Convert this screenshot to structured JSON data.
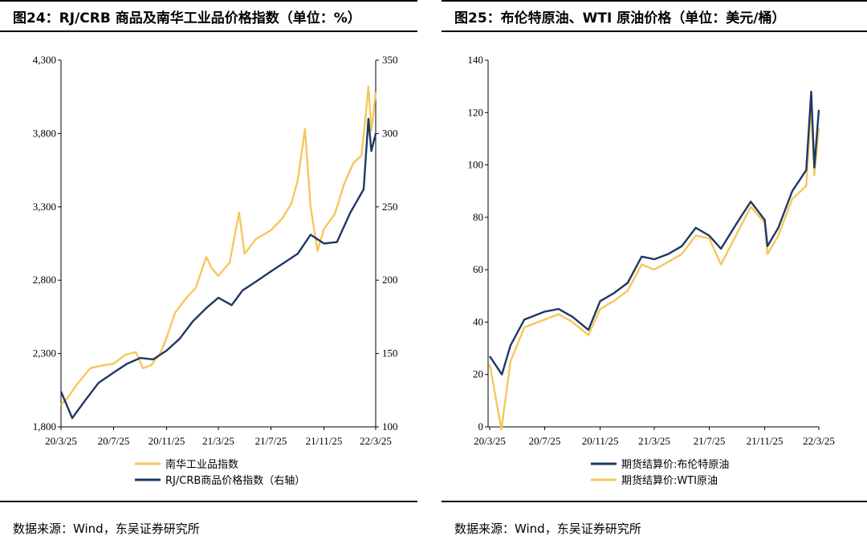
{
  "left": {
    "title": "图24：RJ/CRB 商品及南华工业品价格指数（单位：%）",
    "source": "数据来源：Wind，东吴证券研究所",
    "chart_data": {
      "type": "line",
      "x_ticks": [
        "20/3/25",
        "20/7/25",
        "20/11/25",
        "21/3/25",
        "21/7/25",
        "21/11/25",
        "22/3/25"
      ],
      "y_left": {
        "ticks": [
          "1,800",
          "2,300",
          "2,800",
          "3,300",
          "3,800",
          "4,300"
        ],
        "range": [
          1800,
          4300
        ]
      },
      "y_right": {
        "ticks": [
          "100",
          "150",
          "200",
          "250",
          "300",
          "350"
        ],
        "range": [
          100,
          350
        ]
      },
      "series": [
        {
          "name": "南华工业品指数",
          "axis": "left",
          "color": "#F5C75B",
          "points": [
            [
              "20/3/25",
              1950
            ],
            [
              "20/4/10",
              2000
            ],
            [
              "20/5/1",
              2090
            ],
            [
              "20/6/1",
              2200
            ],
            [
              "20/7/1",
              2220
            ],
            [
              "20/7/25",
              2230
            ],
            [
              "20/8/20",
              2290
            ],
            [
              "20/9/15",
              2310
            ],
            [
              "20/10/1",
              2200
            ],
            [
              "20/10/20",
              2220
            ],
            [
              "20/11/10",
              2300
            ],
            [
              "20/11/25",
              2410
            ],
            [
              "20/12/15",
              2580
            ],
            [
              "21/1/10",
              2680
            ],
            [
              "21/2/1",
              2750
            ],
            [
              "21/2/25",
              2960
            ],
            [
              "21/3/10",
              2880
            ],
            [
              "21/3/25",
              2830
            ],
            [
              "21/4/20",
              2920
            ],
            [
              "21/5/12",
              3260
            ],
            [
              "21/5/25",
              2980
            ],
            [
              "21/6/20",
              3080
            ],
            [
              "21/7/25",
              3140
            ],
            [
              "21/8/20",
              3220
            ],
            [
              "21/9/10",
              3320
            ],
            [
              "21/9/25",
              3480
            ],
            [
              "21/10/12",
              3830
            ],
            [
              "21/10/25",
              3300
            ],
            [
              "21/11/10",
              3000
            ],
            [
              "21/11/25",
              3150
            ],
            [
              "21/12/20",
              3250
            ],
            [
              "22/1/10",
              3450
            ],
            [
              "22/2/1",
              3600
            ],
            [
              "22/2/20",
              3650
            ],
            [
              "22/3/1",
              3900
            ],
            [
              "22/3/8",
              4120
            ],
            [
              "22/3/15",
              3820
            ],
            [
              "22/3/25",
              4080
            ]
          ]
        },
        {
          "name": "RJ/CRB商品价格指数（右轴）",
          "axis": "right",
          "color": "#1F3864",
          "points": [
            [
              "20/3/25",
              124
            ],
            [
              "20/4/20",
              106
            ],
            [
              "20/5/20",
              118
            ],
            [
              "20/6/20",
              130
            ],
            [
              "20/7/25",
              137
            ],
            [
              "20/8/25",
              143
            ],
            [
              "20/9/25",
              147
            ],
            [
              "20/10/25",
              146
            ],
            [
              "20/11/25",
              152
            ],
            [
              "20/12/25",
              160
            ],
            [
              "21/1/25",
              172
            ],
            [
              "21/2/25",
              181
            ],
            [
              "21/3/25",
              188
            ],
            [
              "21/4/25",
              183
            ],
            [
              "21/5/20",
              193
            ],
            [
              "21/6/25",
              200
            ],
            [
              "21/7/25",
              206
            ],
            [
              "21/8/25",
              212
            ],
            [
              "21/9/25",
              218
            ],
            [
              "21/10/25",
              231
            ],
            [
              "21/11/25",
              225
            ],
            [
              "21/12/25",
              226
            ],
            [
              "22/1/25",
              246
            ],
            [
              "22/2/25",
              262
            ],
            [
              "22/3/8",
              310
            ],
            [
              "22/3/15",
              288
            ],
            [
              "22/3/25",
              300
            ]
          ]
        }
      ],
      "legend": "bottom"
    }
  },
  "right": {
    "title": "图25：布伦特原油、WTI 原油价格（单位：美元/桶）",
    "source": "数据来源：Wind，东吴证券研究所",
    "chart_data": {
      "type": "line",
      "x_ticks": [
        "20/3/25",
        "20/7/25",
        "20/11/25",
        "21/3/25",
        "21/7/25",
        "21/11/25",
        "22/3/25"
      ],
      "y_left": {
        "ticks": [
          "0",
          "20",
          "40",
          "60",
          "80",
          "100",
          "120",
          "140"
        ],
        "range": [
          0,
          140
        ]
      },
      "series": [
        {
          "name": "期货结算价:布伦特原油",
          "color": "#1F3864",
          "points": [
            [
              "20/3/25",
              27
            ],
            [
              "20/4/21",
              20
            ],
            [
              "20/5/10",
              31
            ],
            [
              "20/6/10",
              41
            ],
            [
              "20/7/25",
              44
            ],
            [
              "20/8/25",
              45
            ],
            [
              "20/9/25",
              42
            ],
            [
              "20/10/30",
              37
            ],
            [
              "20/11/25",
              48
            ],
            [
              "20/12/25",
              51
            ],
            [
              "21/1/25",
              55
            ],
            [
              "21/2/25",
              65
            ],
            [
              "21/3/25",
              64
            ],
            [
              "21/4/25",
              66
            ],
            [
              "21/5/25",
              69
            ],
            [
              "21/6/25",
              76
            ],
            [
              "21/7/25",
              73
            ],
            [
              "21/8/20",
              68
            ],
            [
              "21/9/25",
              78
            ],
            [
              "21/10/25",
              86
            ],
            [
              "21/11/25",
              79
            ],
            [
              "21/12/1",
              69
            ],
            [
              "21/12/25",
              76
            ],
            [
              "22/1/25",
              90
            ],
            [
              "22/2/25",
              98
            ],
            [
              "22/3/8",
              128
            ],
            [
              "22/3/15",
              99
            ],
            [
              "22/3/25",
              121
            ]
          ]
        },
        {
          "name": "期货结算价:WTI原油",
          "color": "#F5C75B",
          "points": [
            [
              "20/3/25",
              24
            ],
            [
              "20/4/20",
              -1
            ],
            [
              "20/5/10",
              25
            ],
            [
              "20/6/10",
              38
            ],
            [
              "20/7/25",
              41
            ],
            [
              "20/8/25",
              43
            ],
            [
              "20/9/25",
              40
            ],
            [
              "20/10/30",
              35
            ],
            [
              "20/11/25",
              45
            ],
            [
              "20/12/25",
              48
            ],
            [
              "21/1/25",
              52
            ],
            [
              "21/2/25",
              62
            ],
            [
              "21/3/25",
              60
            ],
            [
              "21/4/25",
              63
            ],
            [
              "21/5/25",
              66
            ],
            [
              "21/6/25",
              73
            ],
            [
              "21/7/25",
              72
            ],
            [
              "21/8/20",
              62
            ],
            [
              "21/9/25",
              74
            ],
            [
              "21/10/25",
              84
            ],
            [
              "21/11/25",
              78
            ],
            [
              "21/12/1",
              66
            ],
            [
              "21/12/25",
              73
            ],
            [
              "22/1/25",
              87
            ],
            [
              "22/2/25",
              92
            ],
            [
              "22/3/8",
              123
            ],
            [
              "22/3/15",
              96
            ],
            [
              "22/3/25",
              114
            ]
          ]
        }
      ],
      "legend": "bottom"
    }
  }
}
